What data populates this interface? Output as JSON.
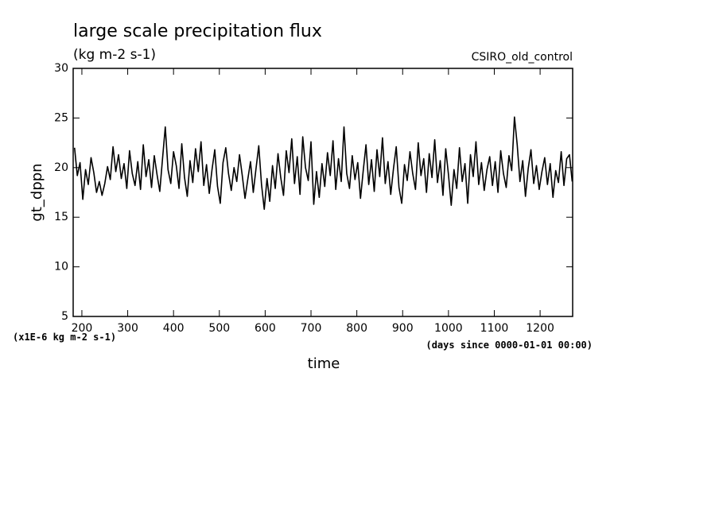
{
  "chart_data": {
    "type": "line",
    "title": "large scale precipitation flux",
    "subtitle": "(kg m-2 s-1)",
    "annotation": "CSIRO_old_control",
    "y_label": "gt_dppn",
    "x_label": "time",
    "y_unit_note": "(x1E-6 kg m-2 s-1)",
    "x_unit_note": "(days since 0000-01-01 00:00)",
    "color": "#000000",
    "xlim": [
      181,
      1271
    ],
    "ylim": [
      5,
      30
    ],
    "xticks": [
      200,
      300,
      400,
      500,
      600,
      700,
      800,
      900,
      1000,
      1100,
      1200
    ],
    "yticks": [
      5,
      10,
      15,
      20,
      25,
      30
    ],
    "x": [
      184,
      190,
      196,
      202,
      208,
      214,
      220,
      226,
      232,
      238,
      244,
      250,
      256,
      262,
      268,
      274,
      280,
      286,
      292,
      298,
      304,
      310,
      316,
      322,
      328,
      334,
      340,
      346,
      352,
      358,
      364,
      370,
      376,
      382,
      388,
      394,
      400,
      406,
      412,
      418,
      424,
      430,
      436,
      442,
      448,
      454,
      460,
      466,
      472,
      478,
      484,
      490,
      496,
      502,
      508,
      514,
      520,
      526,
      532,
      538,
      544,
      550,
      556,
      562,
      568,
      574,
      580,
      586,
      592,
      598,
      604,
      610,
      616,
      622,
      628,
      634,
      640,
      646,
      652,
      658,
      664,
      670,
      676,
      682,
      688,
      694,
      700,
      706,
      712,
      718,
      724,
      730,
      736,
      742,
      748,
      754,
      760,
      766,
      772,
      778,
      784,
      790,
      796,
      802,
      808,
      814,
      820,
      826,
      832,
      838,
      844,
      850,
      856,
      862,
      868,
      874,
      880,
      886,
      892,
      898,
      904,
      910,
      916,
      922,
      928,
      934,
      940,
      946,
      952,
      958,
      964,
      970,
      976,
      982,
      988,
      994,
      1000,
      1006,
      1012,
      1018,
      1024,
      1030,
      1036,
      1042,
      1048,
      1054,
      1060,
      1066,
      1072,
      1078,
      1084,
      1090,
      1096,
      1102,
      1108,
      1114,
      1120,
      1126,
      1132,
      1138,
      1144,
      1150,
      1156,
      1162,
      1168,
      1174,
      1180,
      1186,
      1192,
      1198,
      1204,
      1210,
      1216,
      1222,
      1228,
      1234,
      1240,
      1246,
      1252,
      1258,
      1264,
      1270
    ],
    "values": [
      22.0,
      19.2,
      20.5,
      16.8,
      19.8,
      18.3,
      21.0,
      19.5,
      17.5,
      18.6,
      17.2,
      18.4,
      20.1,
      18.8,
      22.1,
      19.6,
      21.3,
      18.9,
      20.4,
      17.9,
      21.7,
      19.4,
      18.2,
      20.6,
      17.8,
      22.3,
      19.1,
      20.8,
      18.0,
      21.2,
      19.3,
      17.6,
      20.9,
      24.1,
      19.8,
      18.4,
      21.6,
      20.2,
      17.9,
      22.4,
      19.0,
      17.1,
      20.7,
      18.5,
      21.9,
      19.6,
      22.6,
      18.2,
      20.3,
      17.4,
      19.8,
      21.8,
      18.1,
      16.4,
      20.5,
      22.0,
      19.4,
      17.7,
      20.0,
      18.6,
      21.3,
      19.2,
      16.9,
      18.8,
      20.6,
      17.5,
      19.9,
      22.2,
      18.3,
      15.8,
      18.9,
      16.6,
      20.2,
      17.9,
      21.4,
      19.0,
      17.2,
      21.7,
      19.5,
      22.9,
      18.4,
      21.1,
      17.3,
      23.1,
      20.0,
      18.7,
      22.6,
      16.3,
      19.6,
      17.0,
      20.4,
      18.1,
      21.5,
      19.2,
      22.7,
      17.8,
      20.9,
      18.6,
      24.1,
      19.4,
      17.9,
      21.2,
      18.8,
      20.5,
      16.9,
      19.7,
      22.3,
      18.3,
      20.8,
      17.6,
      21.8,
      19.1,
      23.0,
      18.4,
      20.6,
      17.3,
      19.9,
      22.1,
      18.0,
      16.4,
      20.3,
      18.7,
      21.6,
      19.4,
      17.8,
      22.5,
      19.2,
      20.9,
      17.5,
      21.4,
      19.0,
      22.8,
      18.5,
      20.7,
      17.2,
      21.9,
      19.3,
      16.2,
      19.8,
      17.9,
      22.0,
      18.6,
      20.4,
      16.4,
      21.3,
      19.1,
      22.6,
      18.3,
      20.5,
      17.7,
      19.8,
      21.1,
      18.2,
      20.6,
      17.5,
      21.7,
      19.4,
      18.0,
      21.2,
      19.7,
      25.1,
      22.3,
      18.6,
      20.7,
      17.1,
      19.9,
      21.8,
      18.4,
      20.2,
      17.8,
      19.6,
      21.0,
      18.3,
      20.4,
      17.0,
      19.7,
      18.5,
      21.6,
      18.2,
      20.9,
      21.3,
      18.6
    ]
  }
}
